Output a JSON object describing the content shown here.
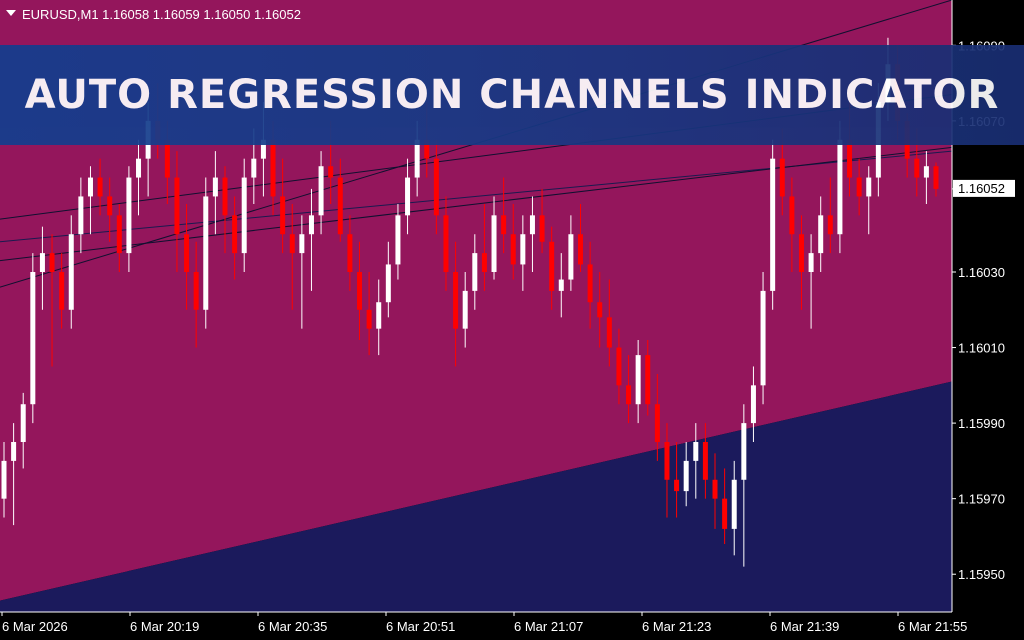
{
  "banner": {
    "title": "AUTO REGRESSION CHANNELS INDICATOR"
  },
  "symbol": {
    "header": "EURUSD,M1  1.16058 1.16059 1.16050 1.16052"
  },
  "colors": {
    "background": "#000000",
    "upper_zone": "#94165c",
    "lower_zone": "#1b1a5c",
    "bull": "#ffffff",
    "bear": "#ff0000",
    "neutral": "#00c000",
    "text": "#ffffff"
  },
  "chart_data": {
    "type": "candlestick",
    "price_axis": {
      "ylim": [
        1.1594,
        1.16102
      ],
      "ticks": [
        "1.16090",
        "1.16070",
        "1.16052",
        "1.16030",
        "1.16010",
        "1.15990",
        "1.15970",
        "1.15950"
      ],
      "current_price": "1.16052"
    },
    "time_axis": {
      "labels": [
        "6 Mar 2026",
        "6 Mar 20:19",
        "6 Mar 20:35",
        "6 Mar 20:51",
        "6 Mar 21:07",
        "6 Mar 21:23",
        "6 Mar 21:39",
        "6 Mar 21:55"
      ]
    },
    "channel_lower_boundary": {
      "start": 1.15943,
      "end": 1.16001
    },
    "regression_lines": [
      {
        "start": 1.16044,
        "end": 1.16077
      },
      {
        "start": 1.16038,
        "end": 1.16062
      },
      {
        "start": 1.16033,
        "end": 1.16063
      },
      {
        "start": 1.16026,
        "end": 1.16102
      }
    ],
    "candles": [
      [
        1.1597,
        1.15985,
        1.15965,
        1.1598
      ],
      [
        1.1598,
        1.1599,
        1.15963,
        1.15985
      ],
      [
        1.15985,
        1.15998,
        1.15978,
        1.15995
      ],
      [
        1.15995,
        1.16035,
        1.1599,
        1.1603
      ],
      [
        1.1603,
        1.16042,
        1.1602,
        1.16035
      ],
      [
        1.16035,
        1.1604,
        1.16005,
        1.1603
      ],
      [
        1.1603,
        1.16035,
        1.16015,
        1.1602
      ],
      [
        1.1602,
        1.16045,
        1.16015,
        1.1604
      ],
      [
        1.1604,
        1.16055,
        1.16035,
        1.1605
      ],
      [
        1.1605,
        1.16058,
        1.1604,
        1.16055
      ],
      [
        1.16055,
        1.1606,
        1.16045,
        1.1605
      ],
      [
        1.1605,
        1.16055,
        1.16038,
        1.16045
      ],
      [
        1.16045,
        1.16048,
        1.1603,
        1.16035
      ],
      [
        1.16035,
        1.16058,
        1.1603,
        1.16055
      ],
      [
        1.16055,
        1.16065,
        1.16045,
        1.1606
      ],
      [
        1.1606,
        1.16075,
        1.1605,
        1.1607
      ],
      [
        1.1607,
        1.1608,
        1.1606,
        1.16065
      ],
      [
        1.16065,
        1.1607,
        1.16048,
        1.16055
      ],
      [
        1.16055,
        1.16062,
        1.1603,
        1.1604
      ],
      [
        1.1604,
        1.16048,
        1.1602,
        1.1603
      ],
      [
        1.1603,
        1.16038,
        1.1601,
        1.1602
      ],
      [
        1.1602,
        1.16055,
        1.16015,
        1.1605
      ],
      [
        1.1605,
        1.16062,
        1.1604,
        1.16055
      ],
      [
        1.16055,
        1.16058,
        1.16035,
        1.16045
      ],
      [
        1.16045,
        1.1605,
        1.16028,
        1.16035
      ],
      [
        1.16035,
        1.1606,
        1.1603,
        1.16055
      ],
      [
        1.16055,
        1.16068,
        1.16048,
        1.1606
      ],
      [
        1.1606,
        1.16075,
        1.1605,
        1.16065
      ],
      [
        1.16065,
        1.1607,
        1.16045,
        1.1605
      ],
      [
        1.1605,
        1.1606,
        1.16035,
        1.1604
      ],
      [
        1.1604,
        1.16048,
        1.1602,
        1.16035
      ],
      [
        1.16035,
        1.16045,
        1.16015,
        1.1604
      ],
      [
        1.1604,
        1.16052,
        1.16025,
        1.16045
      ],
      [
        1.16045,
        1.16062,
        1.1604,
        1.16058
      ],
      [
        1.16058,
        1.1607,
        1.16048,
        1.16055
      ],
      [
        1.16055,
        1.1606,
        1.16038,
        1.1604
      ],
      [
        1.1604,
        1.16045,
        1.16025,
        1.1603
      ],
      [
        1.1603,
        1.16038,
        1.16012,
        1.1602
      ],
      [
        1.1602,
        1.1603,
        1.16008,
        1.16015
      ],
      [
        1.16015,
        1.16028,
        1.16008,
        1.16022
      ],
      [
        1.16022,
        1.16038,
        1.16018,
        1.16032
      ],
      [
        1.16032,
        1.16048,
        1.16028,
        1.16045
      ],
      [
        1.16045,
        1.1606,
        1.1604,
        1.16055
      ],
      [
        1.16055,
        1.1607,
        1.1605,
        1.16065
      ],
      [
        1.16065,
        1.16075,
        1.16055,
        1.1606
      ],
      [
        1.1606,
        1.16065,
        1.1604,
        1.16045
      ],
      [
        1.16045,
        1.1605,
        1.16025,
        1.1603
      ],
      [
        1.1603,
        1.16038,
        1.16005,
        1.16015
      ],
      [
        1.16015,
        1.1603,
        1.1601,
        1.16025
      ],
      [
        1.16025,
        1.1604,
        1.1602,
        1.16035
      ],
      [
        1.16035,
        1.16048,
        1.16025,
        1.1603
      ],
      [
        1.1603,
        1.1605,
        1.16028,
        1.16045
      ],
      [
        1.16045,
        1.16055,
        1.16035,
        1.1604
      ],
      [
        1.1604,
        1.16048,
        1.16028,
        1.16032
      ],
      [
        1.16032,
        1.16045,
        1.16025,
        1.1604
      ],
      [
        1.1604,
        1.1605,
        1.1603,
        1.16045
      ],
      [
        1.16045,
        1.16052,
        1.16035,
        1.16038
      ],
      [
        1.16038,
        1.16042,
        1.1602,
        1.16025
      ],
      [
        1.16025,
        1.16035,
        1.16018,
        1.16028
      ],
      [
        1.16028,
        1.16045,
        1.16025,
        1.1604
      ],
      [
        1.1604,
        1.16048,
        1.1603,
        1.16032
      ],
      [
        1.16032,
        1.16038,
        1.16015,
        1.16022
      ],
      [
        1.16022,
        1.1603,
        1.1601,
        1.16018
      ],
      [
        1.16018,
        1.16028,
        1.16005,
        1.1601
      ],
      [
        1.1601,
        1.16015,
        1.15995,
        1.16
      ],
      [
        1.16,
        1.16008,
        1.1599,
        1.15995
      ],
      [
        1.15995,
        1.16012,
        1.1599,
        1.16008
      ],
      [
        1.16008,
        1.16012,
        1.15992,
        1.15995
      ],
      [
        1.15995,
        1.16003,
        1.1598,
        1.15985
      ],
      [
        1.15985,
        1.1599,
        1.15965,
        1.15975
      ],
      [
        1.15975,
        1.15985,
        1.15965,
        1.15972
      ],
      [
        1.15972,
        1.15985,
        1.15968,
        1.1598
      ],
      [
        1.1598,
        1.1599,
        1.1597,
        1.15985
      ],
      [
        1.15985,
        1.1599,
        1.1597,
        1.15975
      ],
      [
        1.15975,
        1.15982,
        1.15962,
        1.1597
      ],
      [
        1.1597,
        1.15978,
        1.15958,
        1.15962
      ],
      [
        1.15962,
        1.1598,
        1.15955,
        1.15975
      ],
      [
        1.15975,
        1.15995,
        1.15952,
        1.1599
      ],
      [
        1.1599,
        1.16005,
        1.15985,
        1.16
      ],
      [
        1.16,
        1.1603,
        1.15995,
        1.16025
      ],
      [
        1.16025,
        1.16065,
        1.1602,
        1.1606
      ],
      [
        1.1606,
        1.16068,
        1.16045,
        1.1605
      ],
      [
        1.1605,
        1.16055,
        1.1603,
        1.1604
      ],
      [
        1.1604,
        1.16045,
        1.1602,
        1.1603
      ],
      [
        1.1603,
        1.1604,
        1.16015,
        1.16035
      ],
      [
        1.16035,
        1.1605,
        1.1603,
        1.16045
      ],
      [
        1.16045,
        1.16055,
        1.16035,
        1.1604
      ],
      [
        1.1604,
        1.1607,
        1.16035,
        1.16065
      ],
      [
        1.16065,
        1.16075,
        1.1605,
        1.16055
      ],
      [
        1.16055,
        1.1606,
        1.16045,
        1.1605
      ],
      [
        1.1605,
        1.16058,
        1.1604,
        1.16055
      ],
      [
        1.16055,
        1.1608,
        1.1605,
        1.16075
      ],
      [
        1.16075,
        1.16092,
        1.1607,
        1.16085
      ],
      [
        1.16085,
        1.1609,
        1.16065,
        1.1607
      ],
      [
        1.1607,
        1.16072,
        1.16055,
        1.1606
      ],
      [
        1.1606,
        1.16068,
        1.1605,
        1.16055
      ],
      [
        1.16055,
        1.16062,
        1.16048,
        1.16058
      ],
      [
        1.16058,
        1.16059,
        1.1605,
        1.16052
      ]
    ]
  }
}
